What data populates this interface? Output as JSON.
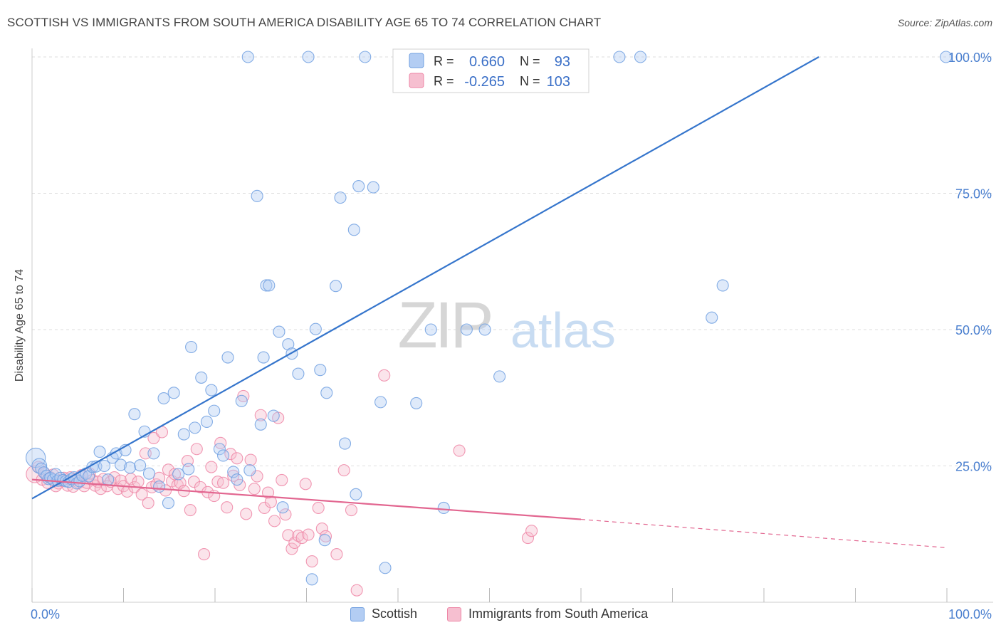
{
  "title": "SCOTTISH VS IMMIGRANTS FROM SOUTH AMERICA DISABILITY AGE 65 TO 74 CORRELATION CHART",
  "source": "Source: ZipAtlas.com",
  "watermark": {
    "zip": "ZIP",
    "atlas": "atlas"
  },
  "colors": {
    "blue": "#6f9fe0",
    "blue_fill": "#b3cdf3",
    "blue_line": "#3575cc",
    "pink": "#ee86a6",
    "pink_fill": "#f6bfd0",
    "pink_line": "#e26690",
    "tick_label": "#4a7fcf"
  },
  "legend": {
    "r_label": "R =",
    "n_label": "N =",
    "rows": [
      {
        "r": "0.660",
        "n": "93"
      },
      {
        "r": "-0.265",
        "n": "103"
      }
    ]
  },
  "chart_data": {
    "type": "scatter",
    "title": "SCOTTISH VS IMMIGRANTS FROM SOUTH AMERICA DISABILITY AGE 65 TO 74 CORRELATION CHART",
    "xlabel": "",
    "ylabel": "Disability Age 65 to 74",
    "xlim": [
      0,
      100
    ],
    "ylim": [
      0,
      100
    ],
    "x_tick_labels": [
      "0.0%",
      "100.0%"
    ],
    "y_tick_labels": [
      "25.0%",
      "50.0%",
      "75.0%",
      "100.0%"
    ],
    "y_ticks": [
      25,
      50,
      75,
      100
    ],
    "grid": true,
    "legend_position": "top-center",
    "series": [
      {
        "name": "Scottish",
        "r": 0.66,
        "n": 93,
        "trend": {
          "x0": 0,
          "y0": 19,
          "x1": 86,
          "y1": 100
        },
        "points": [
          [
            0.4,
            26.5,
            1.7
          ],
          [
            0.8,
            25,
            1.3
          ],
          [
            1,
            24.5,
            1
          ],
          [
            1.3,
            23.8,
            1
          ],
          [
            1.6,
            23.2,
            1
          ],
          [
            1.8,
            22.6,
            1
          ],
          [
            2,
            22.8,
            1
          ],
          [
            2.3,
            22.5,
            1
          ],
          [
            2.6,
            23.5,
            1
          ],
          [
            2.8,
            22.3,
            1
          ],
          [
            3.1,
            22.8,
            1
          ],
          [
            3.4,
            22.4,
            1
          ],
          [
            3.7,
            22.2,
            1
          ],
          [
            4,
            22.1,
            1
          ],
          [
            4.3,
            22.6,
            1
          ],
          [
            4.6,
            22.9,
            1
          ],
          [
            4.9,
            21.8,
            1
          ],
          [
            5.2,
            22.2,
            1
          ],
          [
            5.5,
            23.2,
            1
          ],
          [
            5.9,
            23.6,
            1
          ],
          [
            6.2,
            23.1,
            1
          ],
          [
            6.6,
            24.8,
            1
          ],
          [
            7,
            24.9,
            1
          ],
          [
            7.4,
            27.6,
            1
          ],
          [
            7.9,
            25,
            1
          ],
          [
            8.3,
            22.5,
            1
          ],
          [
            8.8,
            26.5,
            1
          ],
          [
            9.2,
            27.3,
            1
          ],
          [
            9.7,
            25.2,
            1
          ],
          [
            10.2,
            27.9,
            1
          ],
          [
            10.7,
            24.7,
            1
          ],
          [
            11.2,
            34.5,
            1
          ],
          [
            11.8,
            25.1,
            1
          ],
          [
            12.3,
            31.3,
            1
          ],
          [
            12.8,
            23.6,
            1
          ],
          [
            13.3,
            27.3,
            1
          ],
          [
            13.9,
            21.2,
            1
          ],
          [
            14.4,
            37.4,
            1
          ],
          [
            14.9,
            18.2,
            1
          ],
          [
            15.5,
            38.4,
            1
          ],
          [
            16,
            23.5,
            1
          ],
          [
            16.6,
            30.8,
            1
          ],
          [
            17.1,
            24.4,
            1
          ],
          [
            17.4,
            46.8,
            1
          ],
          [
            17.8,
            32,
            1
          ],
          [
            18.5,
            41.2,
            1
          ],
          [
            19.1,
            33.1,
            1
          ],
          [
            19.6,
            38.9,
            1
          ],
          [
            19.9,
            35.1,
            1
          ],
          [
            20.5,
            28.1,
            1
          ],
          [
            20.9,
            26.9,
            1
          ],
          [
            21.4,
            44.9,
            1
          ],
          [
            22,
            23.9,
            1
          ],
          [
            22.4,
            22.5,
            1
          ],
          [
            22.9,
            36.9,
            1
          ],
          [
            23.6,
            100,
            1
          ],
          [
            23.8,
            24.2,
            1
          ],
          [
            24.6,
            74.5,
            1
          ],
          [
            25,
            32.6,
            1
          ],
          [
            25.3,
            44.9,
            1
          ],
          [
            25.6,
            58.1,
            1
          ],
          [
            25.9,
            58.1,
            1
          ],
          [
            26.4,
            34.2,
            1
          ],
          [
            27,
            49.6,
            1
          ],
          [
            27.4,
            17.4,
            1
          ],
          [
            28,
            47.3,
            1
          ],
          [
            28.4,
            45.6,
            1
          ],
          [
            29.1,
            41.9,
            1
          ],
          [
            30.2,
            100,
            1
          ],
          [
            30.6,
            4.2,
            1
          ],
          [
            31,
            50.1,
            1
          ],
          [
            31.5,
            42.6,
            1
          ],
          [
            32,
            11.4,
            1
          ],
          [
            32.2,
            38.4,
            1
          ],
          [
            33.2,
            58,
            1
          ],
          [
            33.7,
            74.2,
            1
          ],
          [
            34.2,
            29.1,
            1
          ],
          [
            35.2,
            68.3,
            1
          ],
          [
            35.4,
            19.8,
            1
          ],
          [
            35.7,
            76.3,
            1
          ],
          [
            36.4,
            100,
            1
          ],
          [
            37.3,
            76.1,
            1
          ],
          [
            38.1,
            36.7,
            1
          ],
          [
            38.6,
            6.3,
            1
          ],
          [
            42,
            36.5,
            1
          ],
          [
            43.6,
            50,
            1
          ],
          [
            45,
            17.3,
            1
          ],
          [
            47.5,
            50,
            1
          ],
          [
            49.5,
            50,
            1
          ],
          [
            50.5,
            100,
            1
          ],
          [
            51.1,
            41.4,
            1
          ],
          [
            55.5,
            100,
            1
          ],
          [
            59,
            100,
            1
          ],
          [
            64.2,
            100,
            1
          ],
          [
            66.5,
            100,
            1
          ],
          [
            74.3,
            52.2,
            1
          ],
          [
            75.5,
            58.1,
            1
          ],
          [
            99.9,
            100,
            1
          ]
        ]
      },
      {
        "name": "Immigrants from South America",
        "r": -0.265,
        "n": 103,
        "trend": {
          "x0": 0,
          "y0": 22.5,
          "x1": 60,
          "y1": 15.2,
          "dash_to_x": 100,
          "dash_to_y": 10
        },
        "points": [
          [
            0.3,
            23.5,
            1.5
          ],
          [
            0.7,
            24.8,
            1
          ],
          [
            1.1,
            22.5,
            1
          ],
          [
            1.4,
            23.6,
            1
          ],
          [
            1.7,
            21.9,
            1
          ],
          [
            2,
            22.9,
            1
          ],
          [
            2.3,
            23.4,
            1
          ],
          [
            2.6,
            21.3,
            1
          ],
          [
            2.9,
            21.8,
            1
          ],
          [
            3.2,
            22.3,
            1
          ],
          [
            3.5,
            22.8,
            1
          ],
          [
            3.9,
            21.4,
            1
          ],
          [
            4.2,
            22.9,
            1
          ],
          [
            4.5,
            21.2,
            1
          ],
          [
            4.8,
            22.6,
            1
          ],
          [
            5.1,
            21.9,
            1
          ],
          [
            5.4,
            23.3,
            1
          ],
          [
            5.7,
            21.3,
            1
          ],
          [
            6,
            21.9,
            1
          ],
          [
            6.3,
            23.6,
            1
          ],
          [
            6.6,
            22.4,
            1
          ],
          [
            6.9,
            21.4,
            1
          ],
          [
            7.2,
            22.1,
            1
          ],
          [
            7.5,
            20.8,
            1
          ],
          [
            7.8,
            22.6,
            1
          ],
          [
            8.2,
            21.3,
            1
          ],
          [
            8.6,
            22.1,
            1
          ],
          [
            9,
            22.9,
            1
          ],
          [
            9.4,
            20.8,
            1
          ],
          [
            9.7,
            22.3,
            1
          ],
          [
            10,
            21.3,
            1
          ],
          [
            10.4,
            20.3,
            1
          ],
          [
            10.8,
            22.6,
            1
          ],
          [
            11.2,
            21.1,
            1
          ],
          [
            11.6,
            22.1,
            1
          ],
          [
            12,
            19.8,
            1
          ],
          [
            12.4,
            27.3,
            1
          ],
          [
            12.7,
            18.2,
            1
          ],
          [
            13.1,
            21.1,
            1
          ],
          [
            13.3,
            30.1,
            1
          ],
          [
            13.6,
            21.6,
            1
          ],
          [
            13.9,
            22.8,
            1
          ],
          [
            14.2,
            31.2,
            1
          ],
          [
            14.6,
            20.5,
            1
          ],
          [
            14.9,
            24.3,
            1
          ],
          [
            15.3,
            22.2,
            1
          ],
          [
            15.6,
            23.5,
            1
          ],
          [
            15.9,
            21.5,
            1
          ],
          [
            16.2,
            21.9,
            1
          ],
          [
            16.6,
            20.4,
            1
          ],
          [
            17,
            25.9,
            1
          ],
          [
            17.3,
            16.9,
            1
          ],
          [
            17.7,
            22.1,
            1
          ],
          [
            18,
            28.1,
            1
          ],
          [
            18.4,
            21.1,
            1
          ],
          [
            18.8,
            8.8,
            1
          ],
          [
            19.2,
            20.2,
            1
          ],
          [
            19.6,
            24.8,
            1
          ],
          [
            19.9,
            19.5,
            1
          ],
          [
            20.3,
            22.1,
            1
          ],
          [
            20.6,
            29.2,
            1
          ],
          [
            20.9,
            21.9,
            1
          ],
          [
            21.3,
            17.4,
            1
          ],
          [
            21.7,
            27.2,
            1
          ],
          [
            22,
            23.2,
            1
          ],
          [
            22.4,
            26.4,
            1
          ],
          [
            22.7,
            21.5,
            1
          ],
          [
            23.1,
            37.8,
            1
          ],
          [
            23.4,
            16.2,
            1
          ],
          [
            23.9,
            26.1,
            1
          ],
          [
            24.3,
            20.8,
            1
          ],
          [
            24.6,
            23.1,
            1
          ],
          [
            25,
            34.3,
            1
          ],
          [
            25.4,
            17.3,
            1
          ],
          [
            25.8,
            20.1,
            1
          ],
          [
            26.1,
            18.4,
            1
          ],
          [
            26.5,
            14.9,
            1
          ],
          [
            26.9,
            33.8,
            1
          ],
          [
            27.3,
            22.4,
            1
          ],
          [
            27.7,
            16.1,
            1
          ],
          [
            28,
            12.3,
            1
          ],
          [
            28.4,
            9.8,
            1
          ],
          [
            28.7,
            10.9,
            1
          ],
          [
            29.1,
            12.2,
            1
          ],
          [
            29.5,
            11.8,
            1
          ],
          [
            29.9,
            21.7,
            1
          ],
          [
            30.2,
            12.4,
            1
          ],
          [
            30.6,
            7.5,
            1
          ],
          [
            31.3,
            17.3,
            1
          ],
          [
            31.7,
            13.5,
            1
          ],
          [
            32.1,
            12.1,
            1
          ],
          [
            33.3,
            8.8,
            1
          ],
          [
            34.1,
            24.2,
            1
          ],
          [
            34.9,
            16.9,
            1
          ],
          [
            35.5,
            2.2,
            1
          ],
          [
            38.5,
            41.6,
            1
          ],
          [
            46.7,
            27.8,
            1
          ],
          [
            54.2,
            11.8,
            1
          ],
          [
            54.6,
            13.1,
            1
          ]
        ]
      }
    ]
  }
}
